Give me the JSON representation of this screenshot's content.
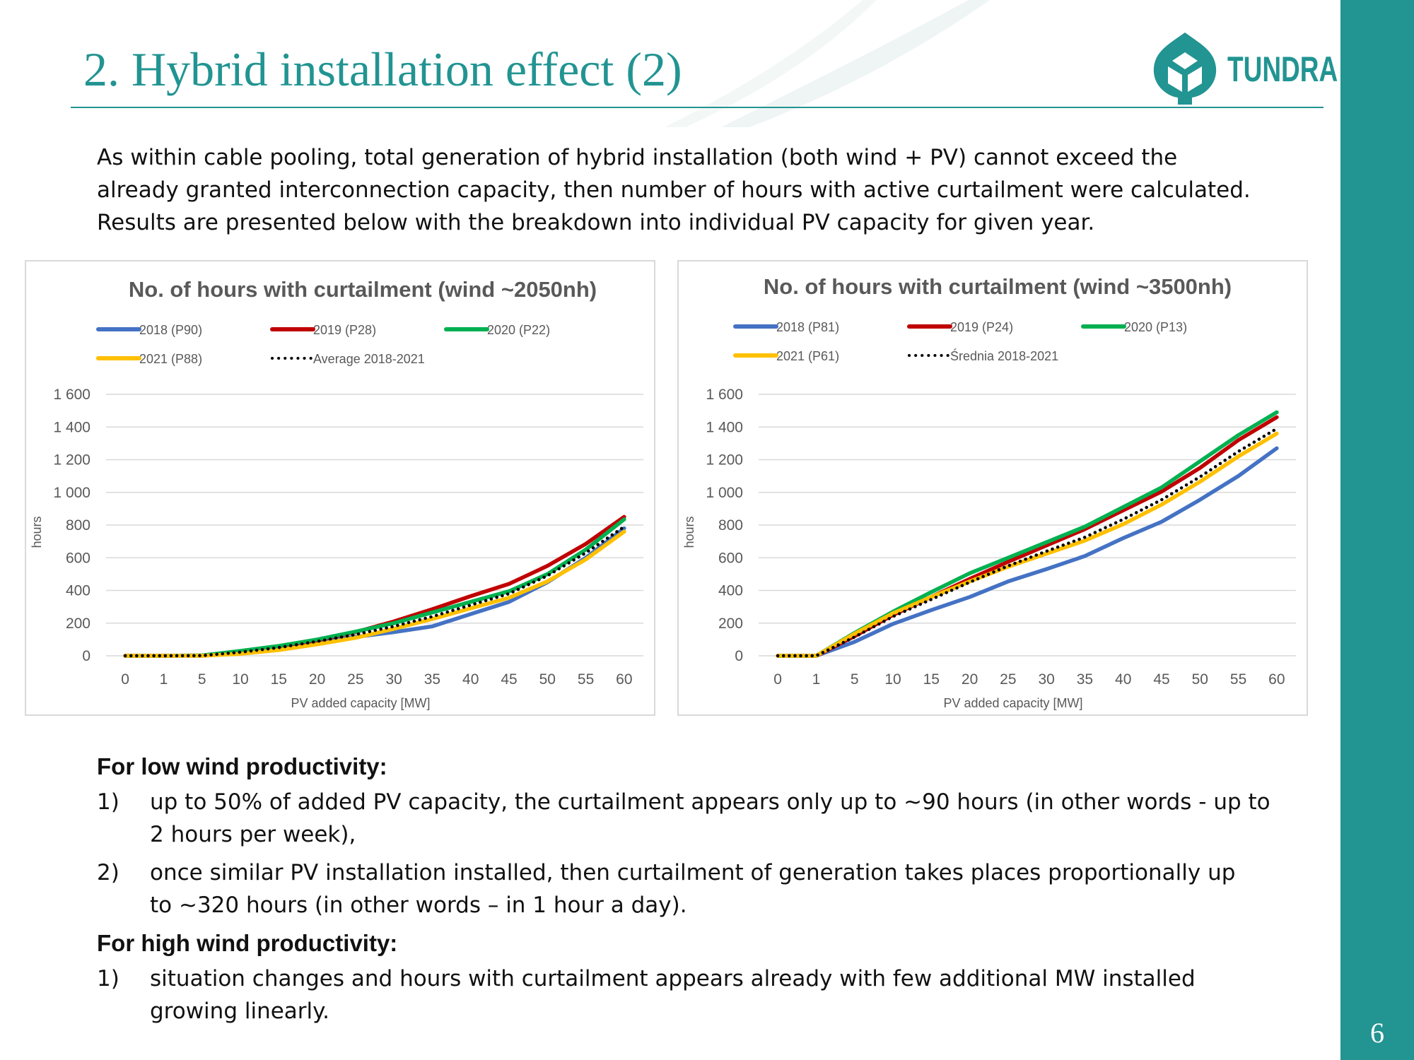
{
  "slide": {
    "title": "2. Hybrid installation effect (2)",
    "page_number": "6",
    "logo_text": "TUNDRA",
    "accent_color": "#229492"
  },
  "intro": {
    "lines": [
      "As within cable pooling, total generation of hybrid installation (both wind + PV) cannot exceed the",
      "already granted interconnection capacity, then number of hours with active curtailment were calculated.",
      "Results are presented below with the breakdown into individual PV capacity for given year."
    ]
  },
  "findings": {
    "low_heading": "For low wind productivity:",
    "low_items": [
      {
        "num": "1)",
        "lines": [
          "up to 50% of added PV capacity, the curtailment appears only up to ~90 hours (in other words - up to",
          "2 hours per week),"
        ]
      },
      {
        "num": "2)",
        "lines": [
          "once similar PV installation installed, then curtailment of generation takes places proportionally up",
          "to ~320 hours (in other words – in 1 hour a day)."
        ]
      }
    ],
    "high_heading": "For high wind productivity:",
    "high_items": [
      {
        "num": "1)",
        "lines": [
          "situation changes and hours with curtailment appears already with few additional MW installed",
          "growing linearly."
        ]
      }
    ]
  },
  "chart_data": [
    {
      "type": "line",
      "title": "No. of hours with curtailment (wind ~2050nh)",
      "xlabel": "PV added capacity [MW]",
      "ylabel": "hours",
      "categories": [
        "0",
        "1",
        "5",
        "10",
        "15",
        "20",
        "25",
        "30",
        "35",
        "40",
        "45",
        "50",
        "55",
        "60"
      ],
      "ylim": [
        0,
        1600
      ],
      "yticks": [
        0,
        200,
        400,
        600,
        800,
        1000,
        1200,
        1400,
        1600
      ],
      "ytick_labels": [
        "0",
        "200",
        "400",
        "600",
        "800",
        "1 000",
        "1 200",
        "1 400",
        "1 600"
      ],
      "grid": true,
      "legend_position": "top",
      "series": [
        {
          "name": "2018 (P90)",
          "color": "#4472c4",
          "dashed": false,
          "values": [
            0,
            0,
            0,
            20,
            45,
            80,
            115,
            145,
            180,
            255,
            330,
            450,
            600,
            780
          ]
        },
        {
          "name": "2019 (P28)",
          "color": "#c00000",
          "dashed": false,
          "values": [
            0,
            0,
            2,
            25,
            55,
            95,
            145,
            210,
            285,
            365,
            440,
            550,
            685,
            850
          ]
        },
        {
          "name": "2020 (P22)",
          "color": "#00b050",
          "dashed": false,
          "values": [
            0,
            0,
            2,
            30,
            60,
            100,
            148,
            200,
            265,
            330,
            395,
            500,
            650,
            835
          ]
        },
        {
          "name": "2021 (P88)",
          "color": "#ffc000",
          "dashed": false,
          "values": [
            0,
            0,
            0,
            12,
            35,
            70,
            110,
            165,
            225,
            290,
            355,
            455,
            590,
            760
          ]
        },
        {
          "name": "Average 2018-2021",
          "color": "#000000",
          "dashed": true,
          "values": [
            0,
            0,
            1,
            22,
            50,
            88,
            130,
            180,
            240,
            310,
            380,
            490,
            630,
            790
          ]
        }
      ]
    },
    {
      "type": "line",
      "title": "No. of hours with curtailment (wind ~3500nh)",
      "xlabel": "PV added capacity [MW]",
      "ylabel": "hours",
      "categories": [
        "0",
        "1",
        "5",
        "10",
        "15",
        "20",
        "25",
        "30",
        "35",
        "40",
        "45",
        "50",
        "55",
        "60"
      ],
      "ylim": [
        0,
        1600
      ],
      "yticks": [
        0,
        200,
        400,
        600,
        800,
        1000,
        1200,
        1400,
        1600
      ],
      "ytick_labels": [
        "0",
        "200",
        "400",
        "600",
        "800",
        "1 000",
        "1 200",
        "1 400",
        "1 600"
      ],
      "grid": true,
      "legend_position": "top",
      "series": [
        {
          "name": "2018 (P81)",
          "color": "#4472c4",
          "dashed": false,
          "values": [
            0,
            0,
            85,
            195,
            280,
            360,
            455,
            530,
            610,
            720,
            820,
            955,
            1100,
            1270
          ]
        },
        {
          "name": "2019 (P24)",
          "color": "#c00000",
          "dashed": false,
          "values": [
            0,
            0,
            120,
            250,
            360,
            470,
            575,
            675,
            775,
            890,
            1005,
            1150,
            1320,
            1460
          ]
        },
        {
          "name": "2020 (P13)",
          "color": "#00b050",
          "dashed": false,
          "values": [
            0,
            0,
            140,
            270,
            390,
            505,
            600,
            695,
            790,
            910,
            1030,
            1190,
            1350,
            1490
          ]
        },
        {
          "name": "2021 (P61)",
          "color": "#ffc000",
          "dashed": false,
          "values": [
            0,
            0,
            135,
            260,
            360,
            455,
            545,
            625,
            705,
            805,
            925,
            1065,
            1220,
            1360
          ]
        },
        {
          "name": "Średnia 2018-2021",
          "color": "#000000",
          "dashed": true,
          "values": [
            0,
            0,
            115,
            240,
            345,
            450,
            550,
            640,
            725,
            835,
            955,
            1095,
            1250,
            1390
          ]
        }
      ]
    }
  ]
}
